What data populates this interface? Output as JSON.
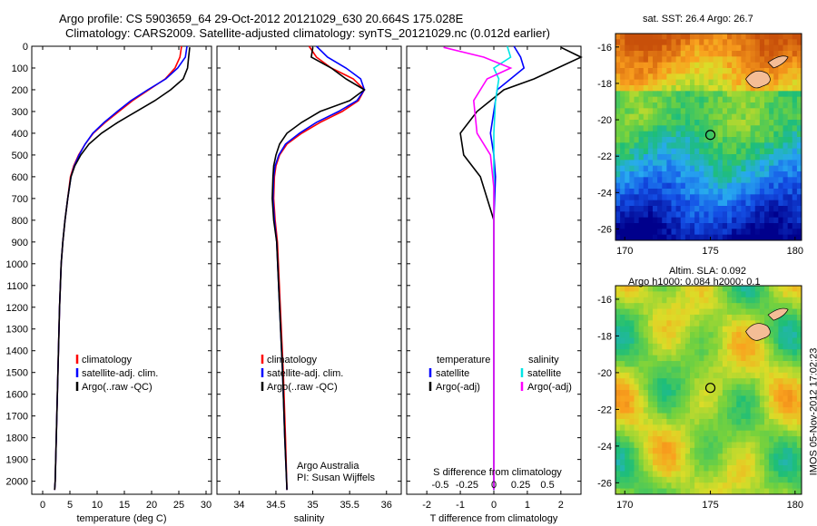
{
  "title_line1": "Argo profile: CS 5903659_64 29-Oct-2012 20121029_630 20.664S 175.028E",
  "title_line2": "Climatology: CARS2009. Satellite-adjusted climatology: synTS_20121029.nc (0.012d earlier)",
  "colors": {
    "clim": "#ff0000",
    "sat": "#0000ff",
    "argo": "#000000",
    "sat_s": "#00e5e5",
    "argo_s": "#ff00ff"
  },
  "chart_data": [
    {
      "type": "line",
      "name": "temperature",
      "xlabel": "temperature (deg C)",
      "ylabel": "",
      "xlim": [
        -2,
        31
      ],
      "ylim": [
        0,
        2060
      ],
      "xticks": [
        "0",
        "5",
        "10",
        "15",
        "20",
        "25",
        "30"
      ],
      "yticks": [
        "0",
        "100",
        "200",
        "300",
        "400",
        "500",
        "600",
        "700",
        "800",
        "900",
        "1000",
        "1100",
        "1200",
        "1300",
        "1400",
        "1500",
        "1600",
        "1700",
        "1800",
        "1900",
        "2000"
      ],
      "legend": [
        "climatology",
        "satellite-adj. clim.",
        "Argo(..raw -QC)"
      ],
      "series": [
        {
          "name": "climatology",
          "x": [
            25.5,
            25.2,
            24.3,
            22.5,
            19.5,
            16.5,
            14.0,
            11.5,
            9.3,
            7.8,
            6.6,
            5.7,
            5.1,
            4.6,
            4.1,
            3.7,
            3.4,
            3.1,
            2.9,
            2.7,
            2.5,
            2.4,
            2.3,
            2.2
          ],
          "y": [
            0,
            50,
            100,
            150,
            200,
            250,
            300,
            350,
            400,
            450,
            500,
            550,
            600,
            700,
            800,
            900,
            1000,
            1200,
            1400,
            1600,
            1800,
            1900,
            2000,
            2040
          ]
        },
        {
          "name": "satellite-adj. clim.",
          "x": [
            26.5,
            26.2,
            24.8,
            22.6,
            19.3,
            16.2,
            13.7,
            11.3,
            9.2,
            7.8,
            6.7,
            5.8,
            5.2,
            4.6,
            4.1,
            3.7,
            3.4,
            3.1,
            2.9,
            2.7,
            2.5,
            2.4,
            2.3,
            2.2
          ],
          "y": [
            0,
            50,
            100,
            150,
            200,
            250,
            300,
            350,
            400,
            450,
            500,
            550,
            600,
            700,
            800,
            900,
            1000,
            1200,
            1400,
            1600,
            1800,
            1900,
            2000,
            2040
          ]
        },
        {
          "name": "Argo(..raw -QC)",
          "x": [
            27.0,
            26.8,
            26.6,
            25.8,
            23.5,
            20.6,
            17.2,
            13.8,
            10.8,
            8.5,
            7.0,
            5.9,
            5.2,
            4.6,
            4.1,
            3.7,
            3.4,
            3.1,
            2.9,
            2.7,
            2.5,
            2.4,
            2.3,
            2.2
          ],
          "y": [
            5,
            50,
            100,
            150,
            200,
            250,
            300,
            350,
            400,
            450,
            500,
            550,
            600,
            700,
            800,
            900,
            1000,
            1200,
            1400,
            1600,
            1800,
            1900,
            2000,
            2040
          ]
        }
      ]
    },
    {
      "type": "line",
      "name": "salinity",
      "xlabel": "salinity",
      "xlim": [
        33.7,
        36.2
      ],
      "ylim": [
        0,
        2060
      ],
      "xticks": [
        "34",
        "34.5",
        "35",
        "35.5",
        "36"
      ],
      "legend": [
        "climatology",
        "satellite-adj. clim.",
        "Argo(..raw -QC)"
      ],
      "annotation": [
        "Argo Australia",
        "PI: Susan Wijffels"
      ],
      "series": [
        {
          "name": "climatology",
          "x": [
            34.95,
            35.05,
            35.25,
            35.55,
            35.7,
            35.62,
            35.4,
            35.1,
            34.85,
            34.65,
            34.55,
            34.5,
            34.48,
            34.47,
            34.49,
            34.52,
            34.56,
            34.6,
            34.63,
            34.65
          ],
          "y": [
            0,
            50,
            100,
            150,
            200,
            250,
            300,
            350,
            400,
            450,
            500,
            550,
            600,
            700,
            800,
            900,
            1200,
            1500,
            1800,
            2040
          ]
        },
        {
          "name": "satellite-adj. clim.",
          "x": [
            35.05,
            35.2,
            35.45,
            35.65,
            35.7,
            35.6,
            35.35,
            35.05,
            34.82,
            34.63,
            34.54,
            34.49,
            34.47,
            34.46,
            34.48,
            34.51,
            34.55,
            34.59,
            34.62,
            34.65
          ],
          "y": [
            0,
            50,
            100,
            150,
            200,
            250,
            300,
            350,
            400,
            450,
            500,
            550,
            600,
            700,
            800,
            900,
            1200,
            1500,
            1800,
            2040
          ]
        },
        {
          "name": "Argo(..raw -QC)",
          "x": [
            35.0,
            34.98,
            35.25,
            35.45,
            35.7,
            35.5,
            35.1,
            34.85,
            34.65,
            34.55,
            34.5,
            34.47,
            34.46,
            34.45,
            34.47,
            34.51,
            34.55,
            34.59,
            34.62,
            34.65
          ],
          "y": [
            5,
            50,
            100,
            150,
            200,
            250,
            300,
            350,
            400,
            450,
            500,
            550,
            600,
            700,
            800,
            900,
            1200,
            1500,
            1800,
            2040
          ]
        }
      ]
    },
    {
      "type": "line",
      "name": "differences",
      "xlabel": "T difference from climatology",
      "xlabel_top": "S difference from climatology",
      "xlim": [
        -2.6,
        2.6
      ],
      "ylim": [
        0,
        2060
      ],
      "xticks": [
        "-2",
        "-1",
        "0",
        "1",
        "2"
      ],
      "xticks_top": [
        "-0.5",
        "-0.25",
        "0",
        "0.25",
        "0.5"
      ],
      "legend_titles": [
        "temperature",
        "salinity"
      ],
      "legend": [
        "satellite",
        "Argo(-adj)",
        "satellite",
        "Argo(-adj)"
      ],
      "series": [
        {
          "name": "temperature satellite",
          "x": [
            0.6,
            0.8,
            0.9,
            0.5,
            0.1,
            0.0,
            -0.1,
            0.0,
            0.05,
            0.0,
            0.0,
            0.0,
            0.0
          ],
          "y": [
            0,
            50,
            100,
            150,
            200,
            300,
            400,
            500,
            600,
            800,
            1200,
            1600,
            2040
          ]
        },
        {
          "name": "temperature Argo(-adj)",
          "x": [
            2.0,
            2.6,
            1.9,
            1.2,
            0.3,
            -0.5,
            -1.0,
            -0.9,
            -0.4,
            0.0,
            0.0,
            0.0,
            0.0
          ],
          "y": [
            5,
            50,
            100,
            150,
            200,
            300,
            400,
            500,
            600,
            800,
            1200,
            1600,
            2040
          ]
        },
        {
          "name": "salinity satellite",
          "x": [
            0.4,
            0.5,
            0.0,
            0.15,
            0.05,
            0.0,
            0.0,
            0.0,
            0.0,
            0.0
          ],
          "y": [
            0,
            50,
            100,
            150,
            250,
            400,
            600,
            900,
            1500,
            2040
          ]
        },
        {
          "name": "salinity Argo(-adj)",
          "x": [
            -1.5,
            -0.3,
            0.5,
            -0.2,
            -0.6,
            -0.5,
            -0.1,
            0.0,
            0.0,
            0.0
          ],
          "y": [
            5,
            50,
            100,
            150,
            250,
            400,
            500,
            650,
            1000,
            2040
          ]
        }
      ]
    }
  ],
  "map_top": {
    "title": "sat. SST: 26.4 Argo: 26.7",
    "xticks": [
      "170",
      "175",
      "180"
    ],
    "yticks": [
      "-16",
      "-18",
      "-20",
      "-22",
      "-24",
      "-26"
    ]
  },
  "map_bottom": {
    "title1": "Altim. SLA: 0.092",
    "title2": "Argo h1000: 0.084 h2000: 0.1",
    "xticks": [
      "170",
      "175",
      "180"
    ],
    "yticks": [
      "-16",
      "-18",
      "-20",
      "-22",
      "-24",
      "-26"
    ]
  },
  "timestamp": "IMOS 05-Nov-2012 17:02:23"
}
